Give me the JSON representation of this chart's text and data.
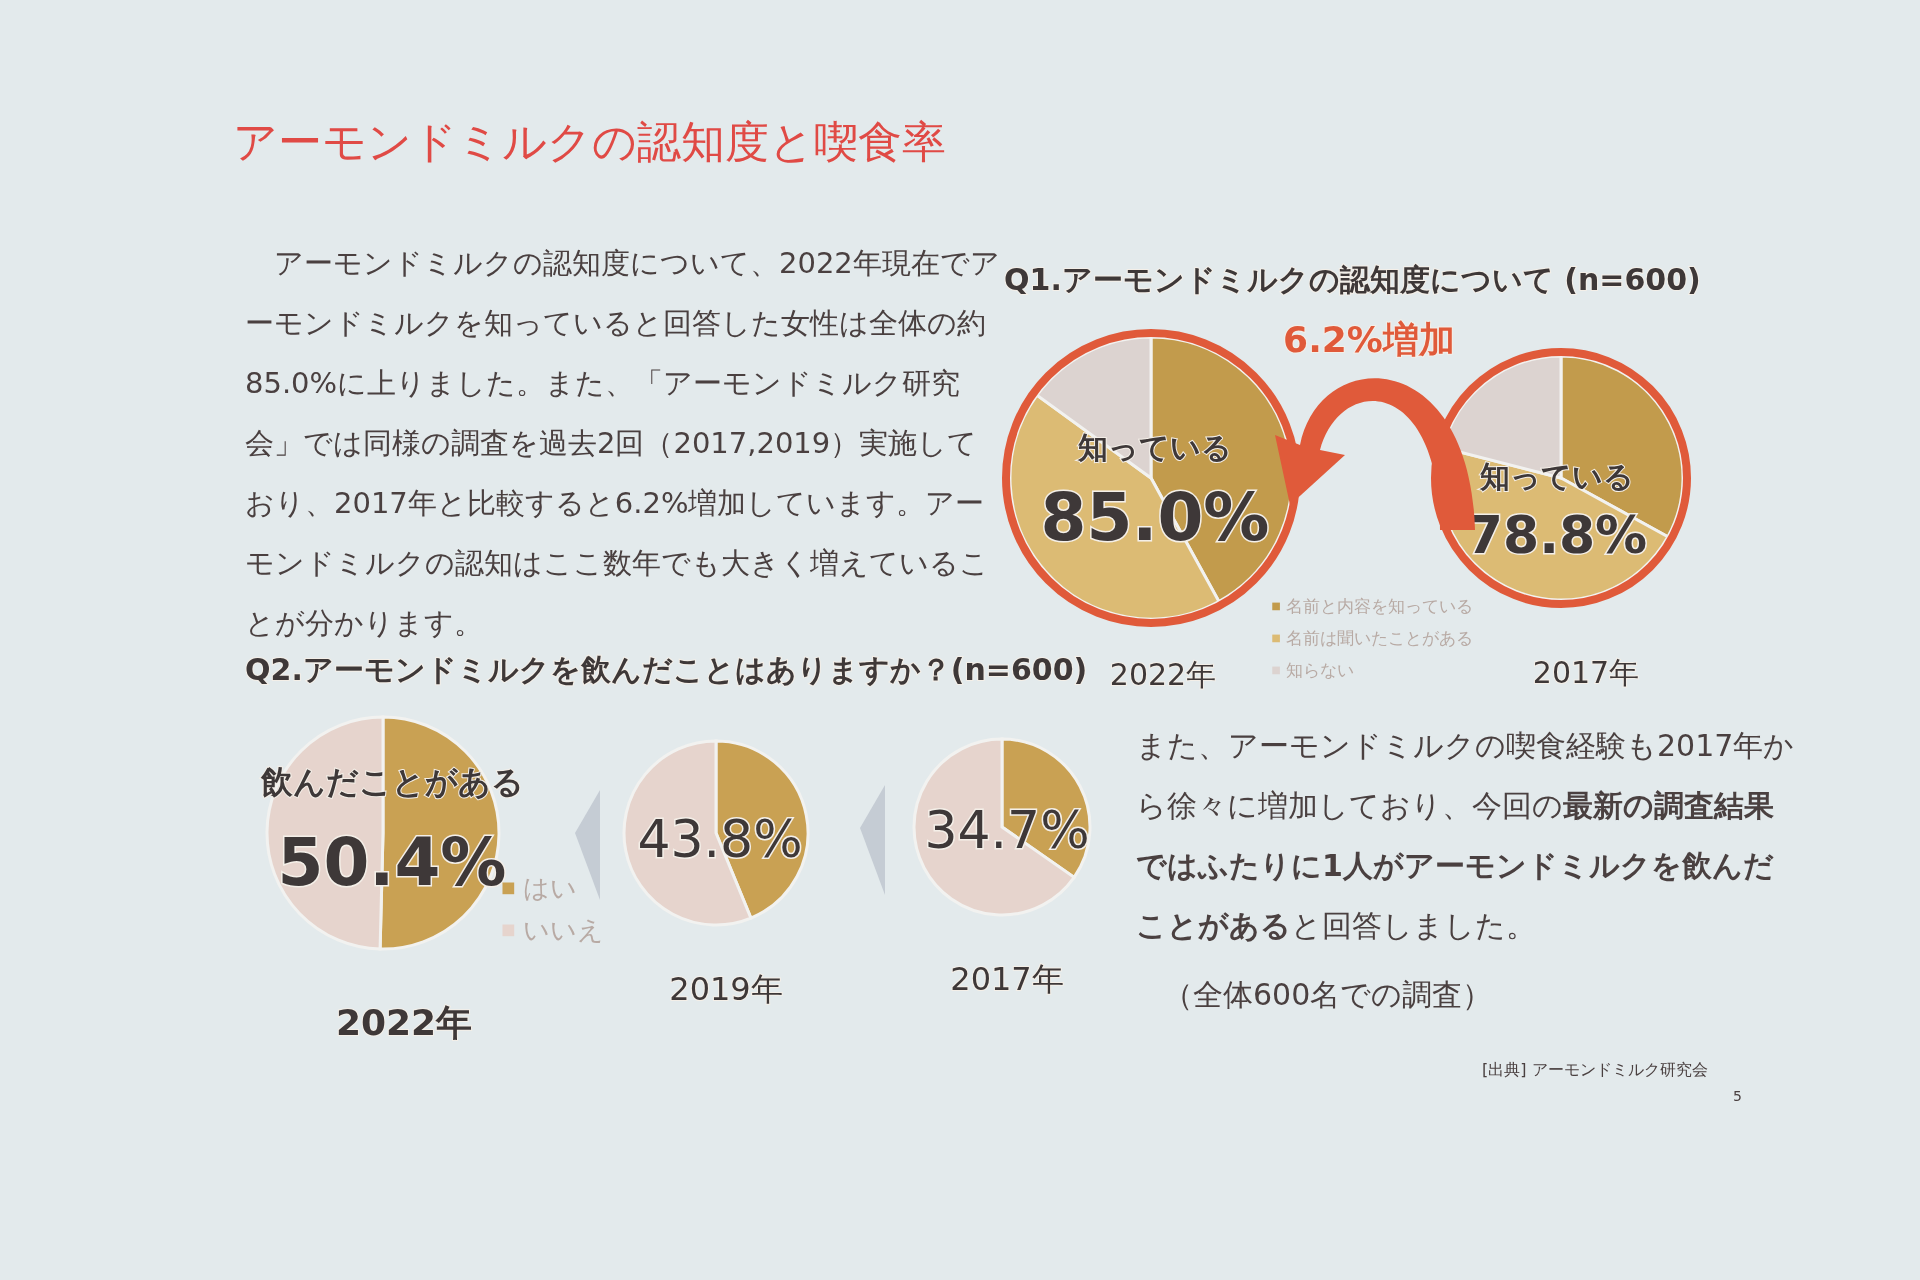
{
  "chart_data": [
    {
      "type": "other",
      "title": "アーモンドミルクの認知度と喫食率",
      "annotations": [
        "　アーモンドミルクの認知度について、2022年現在でアーモンドミルクを知っていると回答した女性は全体の約85.0%に上りました。また、「アーモンドミルク研究会」では同様の調査を過去2回（2017,2019）実施しており、2017年と比較すると6.2%増加しています。アーモンドミルクの認知はここ数年でも大きく増えていることが分かります。",
        "また、アーモンドミルクの喫食経験も2017年から徐々に増加しており、今回の**最新の調査結果ではふたりに1人がアーモンドミルクを飲んだことがある**と回答しました。",
        "（全体600名での調査）",
        "[出典] アーモンドミルク研究会",
        "5"
      ]
    },
    {
      "type": "pie",
      "title": "Q1.アーモンドミルクの認知度について (n=600)",
      "xlabel": "2022年",
      "categories": [
        "名前と内容を知っている",
        "名前は聞いたことがある",
        "知らない"
      ],
      "values": [
        42,
        43,
        15
      ],
      "colors": [
        "#c29b4c",
        "#dcbb74",
        "#dcd3d0"
      ],
      "legend": "bottom right",
      "annotations": [
        "知っている",
        "85.0%",
        "6.2%増加"
      ]
    },
    {
      "type": "pie",
      "xlabel": "2017年",
      "categories": [
        null,
        null,
        null
      ],
      "values": [
        33,
        46,
        21
      ],
      "colors": [
        "#c29b4c",
        "#dcbb74",
        "#dcd3d0"
      ],
      "annotations": [
        "知っている",
        "78.8%"
      ]
    },
    {
      "type": "pie",
      "title": "Q2.アーモンドミルクを飲んだことはありますか？(n=600)",
      "xlabel": "2022年",
      "categories": [
        "はい",
        "いいえ"
      ],
      "values": [
        50.4,
        49.6
      ],
      "colors": [
        "#c9a153",
        "#e6d4cd"
      ],
      "legend": "right",
      "annotations": [
        "飲んだことがある",
        "50.4%"
      ]
    },
    {
      "type": "pie",
      "xlabel": "2019年",
      "categories": [
        null,
        null
      ],
      "values": [
        43.8,
        56.2
      ],
      "colors": [
        "#c9a153",
        "#e6d4cd"
      ],
      "annotations": [
        "43.8%"
      ]
    },
    {
      "type": "pie",
      "xlabel": "2017年",
      "categories": [
        null,
        null
      ],
      "values": [
        34.7,
        65.3
      ],
      "colors": [
        "#c9a153",
        "#e6d4cd"
      ],
      "annotations": [
        "34.7%"
      ]
    }
  ]
}
